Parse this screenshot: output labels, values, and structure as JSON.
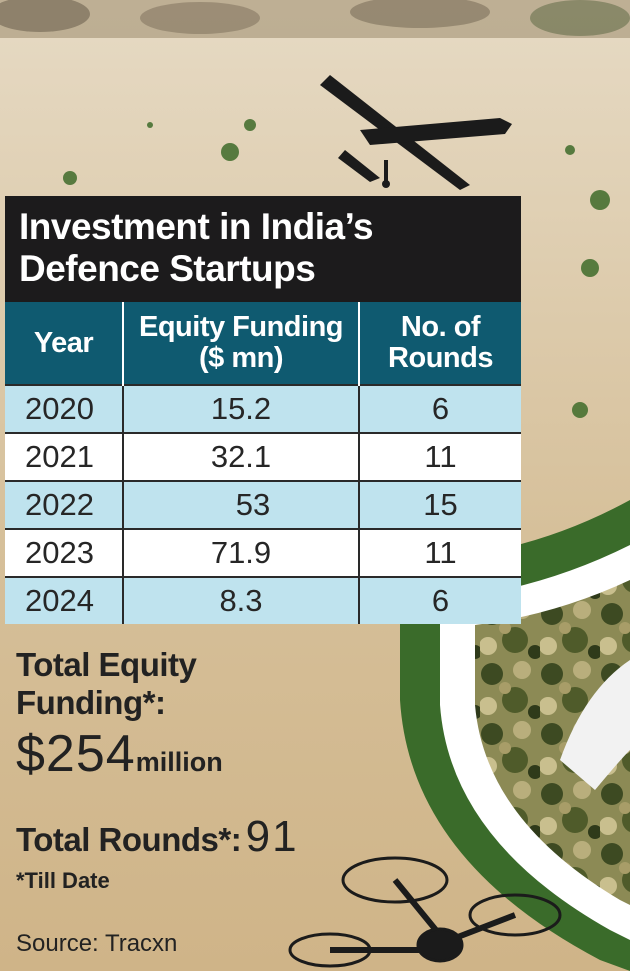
{
  "title_line1": "Investment in India’s",
  "title_line2": "Defence Startups",
  "columns": [
    "Year",
    "Equity Funding ($ mn)",
    "No. of Rounds"
  ],
  "col_year": "Year",
  "col_funding_l1": "Equity Funding",
  "col_funding_l2": "($ mn)",
  "col_rounds_l1": "No. of",
  "col_rounds_l2": "Rounds",
  "rows": [
    {
      "year": "2020",
      "funding": "15.2",
      "rounds": "6"
    },
    {
      "year": "2021",
      "funding": "32.1",
      "rounds": "11"
    },
    {
      "year": "2022",
      "funding": "53",
      "rounds": "15"
    },
    {
      "year": "2023",
      "funding": "71.9",
      "rounds": "11"
    },
    {
      "year": "2024",
      "funding": "8.3",
      "rounds": "6"
    }
  ],
  "summary": {
    "equity_label_l1": "Total Equity",
    "equity_label_l2": "Funding*:",
    "equity_value": "$254",
    "equity_unit": "million",
    "rounds_label": "Total Rounds*:",
    "rounds_value": "91",
    "note": "*Till Date"
  },
  "source": "Source: Tracxn",
  "chart_data": {
    "type": "table",
    "title": "Investment in India’s Defence Startups",
    "columns": [
      "Year",
      "Equity Funding ($ mn)",
      "No. of Rounds"
    ],
    "x": [
      "2020",
      "2021",
      "2022",
      "2023",
      "2024"
    ],
    "series": [
      {
        "name": "Equity Funding ($ mn)",
        "values": [
          15.2,
          32.1,
          53,
          71.9,
          8.3
        ]
      },
      {
        "name": "No. of Rounds",
        "values": [
          6,
          11,
          15,
          11,
          6
        ]
      }
    ]
  },
  "colors": {
    "title_bg": "#1c1b1c",
    "header_bg": "#0f5a70",
    "row_alt": "#bfe3ee",
    "shield_green": "#3a6b2a"
  },
  "icons": [
    "drone-silhouette-icon",
    "quadcopter-drone-icon",
    "camo-shield-icon",
    "rocket-icon"
  ]
}
